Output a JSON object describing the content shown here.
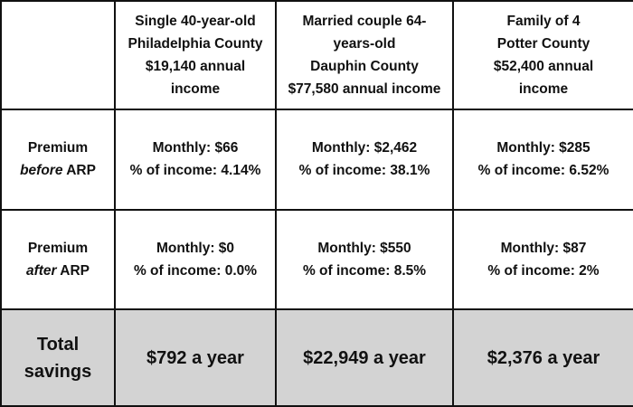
{
  "table": {
    "header": [
      [
        "Single 40-year-old",
        "Philadelphia County",
        "$19,140 annual",
        "income"
      ],
      [
        "Married couple 64-",
        "years-old",
        "Dauphin County",
        "$77,580 annual income"
      ],
      [
        "Family of 4",
        "Potter County",
        "$52,400 annual",
        "income"
      ]
    ],
    "rows": [
      {
        "label": [
          "Premium",
          "before",
          "ARP"
        ],
        "cells": [
          [
            "Monthly: $66",
            "% of income: 4.14%"
          ],
          [
            "Monthly: $2,462",
            "% of income: 38.1%"
          ],
          [
            "Monthly: $285",
            "% of income: 6.52%"
          ]
        ]
      },
      {
        "label": [
          "Premium",
          "after",
          "ARP"
        ],
        "cells": [
          [
            "Monthly: $0",
            "% of income: 0.0%"
          ],
          [
            "Monthly: $550",
            "% of income: 8.5%"
          ],
          [
            "Monthly: $87",
            "% of income: 2%"
          ]
        ]
      }
    ],
    "total": {
      "label": [
        "Total",
        "savings"
      ],
      "cells": [
        "$792 a year",
        "$22,949 a year",
        "$2,376 a year"
      ]
    }
  }
}
